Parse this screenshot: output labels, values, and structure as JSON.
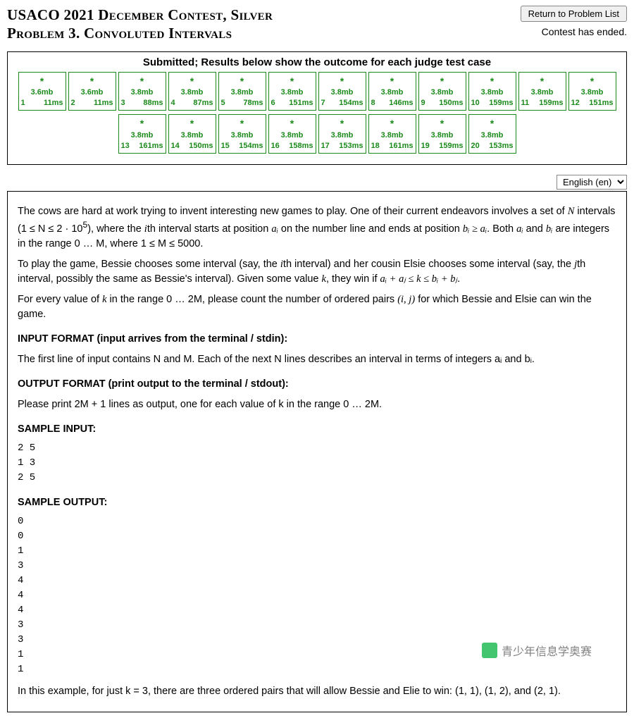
{
  "header": {
    "title_line1": "USACO 2021 December Contest, Silver",
    "title_line2": "Problem 3. Convoluted Intervals",
    "return_button": "Return to Problem List",
    "contest_status": "Contest has ended."
  },
  "results": {
    "title": "Submitted; Results below show the outcome for each judge test case",
    "border_color": "#1a8a1a",
    "text_color": "#1a8a1a",
    "star_glyph": "*",
    "row1": [
      {
        "n": "1",
        "mem": "3.6mb",
        "time": "11ms"
      },
      {
        "n": "2",
        "mem": "3.6mb",
        "time": "11ms"
      },
      {
        "n": "3",
        "mem": "3.8mb",
        "time": "88ms"
      },
      {
        "n": "4",
        "mem": "3.8mb",
        "time": "87ms"
      },
      {
        "n": "5",
        "mem": "3.8mb",
        "time": "78ms"
      },
      {
        "n": "6",
        "mem": "3.8mb",
        "time": "151ms"
      },
      {
        "n": "7",
        "mem": "3.8mb",
        "time": "154ms"
      },
      {
        "n": "8",
        "mem": "3.8mb",
        "time": "146ms"
      },
      {
        "n": "9",
        "mem": "3.8mb",
        "time": "150ms"
      },
      {
        "n": "10",
        "mem": "3.8mb",
        "time": "159ms"
      },
      {
        "n": "11",
        "mem": "3.8mb",
        "time": "159ms"
      },
      {
        "n": "12",
        "mem": "3.8mb",
        "time": "151ms"
      }
    ],
    "row2": [
      {
        "n": "13",
        "mem": "3.8mb",
        "time": "161ms"
      },
      {
        "n": "14",
        "mem": "3.8mb",
        "time": "150ms"
      },
      {
        "n": "15",
        "mem": "3.8mb",
        "time": "154ms"
      },
      {
        "n": "16",
        "mem": "3.8mb",
        "time": "158ms"
      },
      {
        "n": "17",
        "mem": "3.8mb",
        "time": "153ms"
      },
      {
        "n": "18",
        "mem": "3.8mb",
        "time": "161ms"
      },
      {
        "n": "19",
        "mem": "3.8mb",
        "time": "159ms"
      },
      {
        "n": "20",
        "mem": "3.8mb",
        "time": "153ms"
      }
    ]
  },
  "language": {
    "selected": "English (en)"
  },
  "problem": {
    "p1_a": "The cows are hard at work trying to invent interesting new games to play. One of their current endeavors involves a set of ",
    "p1_b": " intervals (1 ≤ N ≤ 2 · 10",
    "p1_b_sup": "5",
    "p1_c": "), where the ",
    "p1_d": "th interval starts at position ",
    "p1_e": " on the number line and ends at position ",
    "p1_f": ". Both ",
    "p1_g": " and ",
    "p1_h": " are integers in the range 0 … M, where 1 ≤ M ≤ 5000.",
    "p2_a": "To play the game, Bessie chooses some interval (say, the ",
    "p2_b": "th interval) and her cousin Elsie chooses some interval (say, the ",
    "p2_c": "th interval, possibly the same as Bessie's interval). Given some value ",
    "p2_d": ", they win if ",
    "p2_e": ".",
    "p3_a": "For every value of ",
    "p3_b": " in the range 0 … 2M, please count the number of ordered pairs ",
    "p3_c": " for which Bessie and Elsie can win the game.",
    "hdr_input": "INPUT FORMAT (input arrives from the terminal / stdin):",
    "p_input": "The first line of input contains N and M. Each of the next N lines describes an interval in terms of integers aᵢ and bᵢ.",
    "hdr_output": "OUTPUT FORMAT (print output to the terminal / stdout):",
    "p_output": "Please print 2M + 1 lines as output, one for each value of k in the range 0 … 2M.",
    "hdr_sample_in": "SAMPLE INPUT:",
    "sample_in": "2 5\n1 3\n2 5",
    "hdr_sample_out": "SAMPLE OUTPUT:",
    "sample_out": "0\n0\n1\n3\n4\n4\n4\n3\n3\n1\n1",
    "p_example": "In this example, for just k = 3, there are three ordered pairs that will allow Bessie and Elie to win: (1, 1), (1, 2), and (2, 1)."
  },
  "watermark": {
    "text": "青少年信息学奥赛"
  },
  "sym": {
    "N": "N",
    "i": "i",
    "ai": "aᵢ",
    "bi": "bᵢ",
    "bi_ge_ai": "bᵢ ≥ aᵢ",
    "j": "j",
    "k": "k",
    "win_ineq": "aᵢ + aⱼ ≤ k ≤ bᵢ + bⱼ",
    "ij_pair": "(i, j)"
  }
}
